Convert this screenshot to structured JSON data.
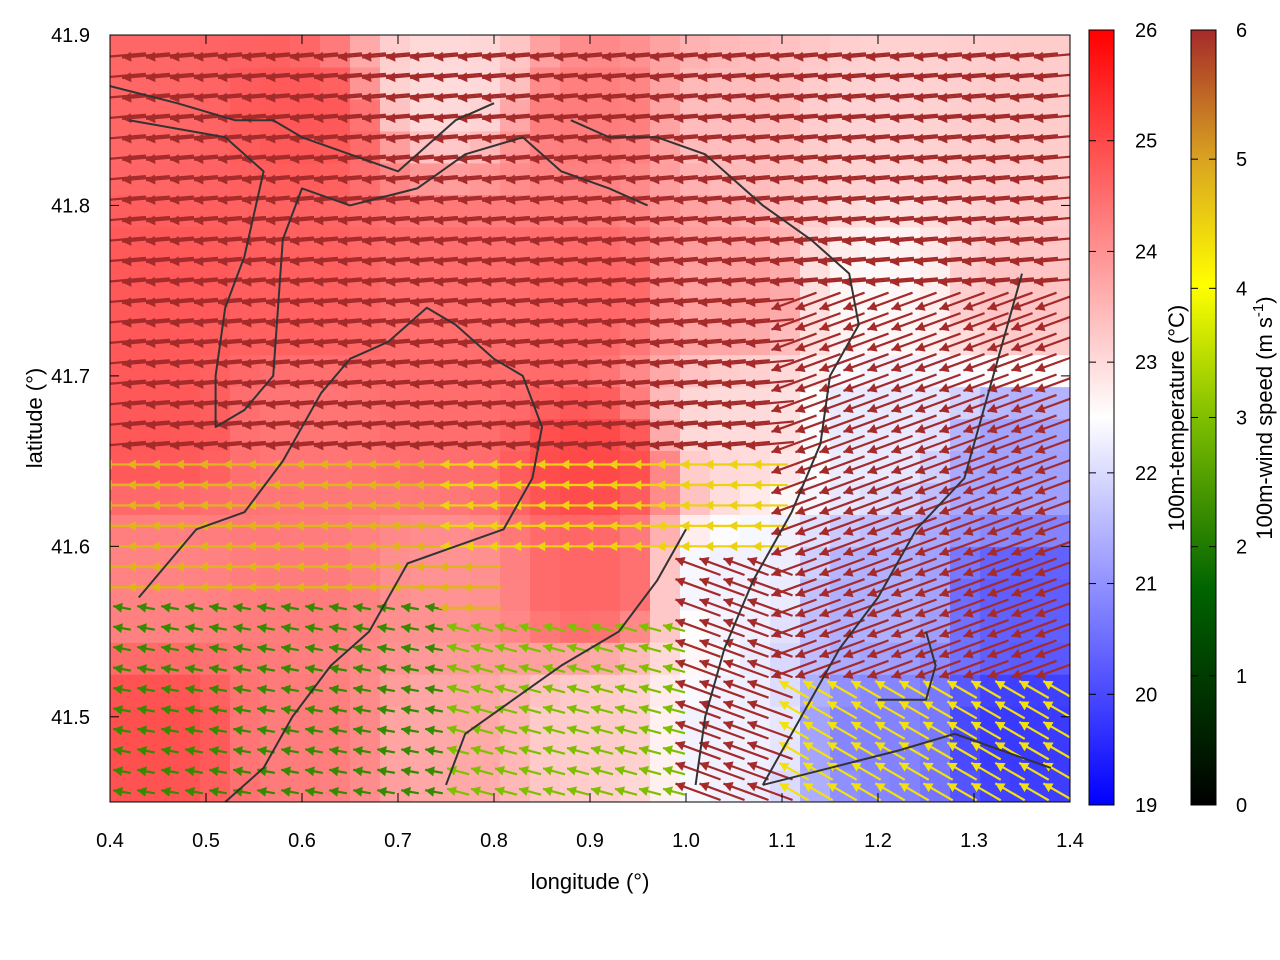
{
  "chart_data": {
    "type": "heatmap",
    "overlay": "wind-vector-field-with-contours",
    "xlabel": "longitude (°)",
    "ylabel": "latitude (°)",
    "xlim": [
      0.4,
      1.4
    ],
    "ylim": [
      41.45,
      41.9
    ],
    "xticks": [
      "0.4",
      "0.5",
      "0.6",
      "0.7",
      "0.8",
      "0.9",
      "1.0",
      "1.1",
      "1.2",
      "1.3",
      "1.4"
    ],
    "yticks": [
      "41.5",
      "41.6",
      "41.7",
      "41.8",
      "41.9"
    ],
    "grid": false,
    "temperature_colorbar": {
      "label": "100m-temperature (°C)",
      "range": [
        19,
        26
      ],
      "ticks": [
        "19",
        "20",
        "21",
        "22",
        "23",
        "24",
        "25",
        "26"
      ],
      "colors": [
        "#0000ff",
        "#ffffff",
        "#ff0000"
      ]
    },
    "wind_colorbar": {
      "label_prefix": "100m-wind speed (m s",
      "label_exp": "-1",
      "label_suffix": ")",
      "range": [
        0,
        6
      ],
      "ticks": [
        "0",
        "1",
        "2",
        "3",
        "4",
        "5",
        "6"
      ],
      "colors": [
        "#000000",
        "#006400",
        "#7fbf00",
        "#ffff00",
        "#daa520",
        "#a52a2a"
      ]
    },
    "temperature_field": [
      {
        "lon": 0.45,
        "lat": 41.85,
        "t": 24.6
      },
      {
        "lon": 0.6,
        "lat": 41.85,
        "t": 24.8
      },
      {
        "lon": 0.75,
        "lat": 41.87,
        "t": 23.0
      },
      {
        "lon": 0.9,
        "lat": 41.85,
        "t": 24.3
      },
      {
        "lon": 1.05,
        "lat": 41.85,
        "t": 23.4
      },
      {
        "lon": 1.2,
        "lat": 41.85,
        "t": 23.1
      },
      {
        "lon": 1.35,
        "lat": 41.85,
        "t": 23.2
      },
      {
        "lon": 0.45,
        "lat": 41.75,
        "t": 24.8
      },
      {
        "lon": 0.6,
        "lat": 41.75,
        "t": 24.7
      },
      {
        "lon": 0.75,
        "lat": 41.75,
        "t": 24.5
      },
      {
        "lon": 0.9,
        "lat": 41.75,
        "t": 24.6
      },
      {
        "lon": 1.05,
        "lat": 41.75,
        "t": 23.8
      },
      {
        "lon": 1.2,
        "lat": 41.75,
        "t": 22.6
      },
      {
        "lon": 1.35,
        "lat": 41.75,
        "t": 23.3
      },
      {
        "lon": 0.45,
        "lat": 41.67,
        "t": 24.8
      },
      {
        "lon": 0.6,
        "lat": 41.67,
        "t": 24.4
      },
      {
        "lon": 0.75,
        "lat": 41.67,
        "t": 24.5
      },
      {
        "lon": 0.9,
        "lat": 41.65,
        "t": 25.0
      },
      {
        "lon": 1.05,
        "lat": 41.67,
        "t": 23.0
      },
      {
        "lon": 1.2,
        "lat": 41.67,
        "t": 22.2
      },
      {
        "lon": 1.35,
        "lat": 41.65,
        "t": 21.2
      },
      {
        "lon": 0.45,
        "lat": 41.58,
        "t": 24.2
      },
      {
        "lon": 0.6,
        "lat": 41.58,
        "t": 24.3
      },
      {
        "lon": 0.75,
        "lat": 41.58,
        "t": 24.0
      },
      {
        "lon": 0.9,
        "lat": 41.58,
        "t": 24.6
      },
      {
        "lon": 1.05,
        "lat": 41.58,
        "t": 22.3
      },
      {
        "lon": 1.2,
        "lat": 41.57,
        "t": 21.4
      },
      {
        "lon": 1.35,
        "lat": 41.57,
        "t": 20.3
      },
      {
        "lon": 0.45,
        "lat": 41.49,
        "t": 24.9
      },
      {
        "lon": 0.6,
        "lat": 41.49,
        "t": 24.3
      },
      {
        "lon": 0.75,
        "lat": 41.49,
        "t": 23.7
      },
      {
        "lon": 0.9,
        "lat": 41.49,
        "t": 23.2
      },
      {
        "lon": 1.05,
        "lat": 41.49,
        "t": 22.3
      },
      {
        "lon": 1.2,
        "lat": 41.49,
        "t": 20.8
      },
      {
        "lon": 1.35,
        "lat": 41.49,
        "t": 19.8
      }
    ],
    "wind_regions": [
      {
        "lon": [
          0.4,
          1.4
        ],
        "lat": [
          41.63,
          41.9
        ],
        "speed": 6.0,
        "direction_deg": 185
      },
      {
        "lon": [
          1.1,
          1.4
        ],
        "lat": [
          41.5,
          41.75
        ],
        "speed": 6.0,
        "direction_deg": 200
      },
      {
        "lon": [
          0.4,
          0.8
        ],
        "lat": [
          41.56,
          41.65
        ],
        "speed": 4.6,
        "direction_deg": 180
      },
      {
        "lon": [
          0.75,
          1.1
        ],
        "lat": [
          41.6,
          41.66
        ],
        "speed": 4.2,
        "direction_deg": 180
      },
      {
        "lon": [
          0.4,
          0.75
        ],
        "lat": [
          41.45,
          41.57
        ],
        "speed": 1.7,
        "direction_deg": 170
      },
      {
        "lon": [
          0.75,
          1.0
        ],
        "lat": [
          41.45,
          41.56
        ],
        "speed": 2.4,
        "direction_deg": 165
      },
      {
        "lon": [
          1.1,
          1.4
        ],
        "lat": [
          41.45,
          41.52
        ],
        "speed": 4.0,
        "direction_deg": 150
      },
      {
        "lon": [
          1.0,
          1.1
        ],
        "lat": [
          41.45,
          41.6
        ],
        "speed": 6.0,
        "direction_deg": 160
      }
    ],
    "contours": [
      [
        [
          0.42,
          41.85
        ],
        [
          0.52,
          41.84
        ],
        [
          0.56,
          41.82
        ],
        [
          0.54,
          41.77
        ],
        [
          0.52,
          41.74
        ],
        [
          0.51,
          41.7
        ],
        [
          0.51,
          41.67
        ],
        [
          0.54,
          41.68
        ],
        [
          0.57,
          41.7
        ],
        [
          0.58,
          41.78
        ],
        [
          0.6,
          41.81
        ],
        [
          0.65,
          41.8
        ],
        [
          0.72,
          41.81
        ],
        [
          0.77,
          41.83
        ],
        [
          0.83,
          41.84
        ],
        [
          0.87,
          41.82
        ],
        [
          0.92,
          41.81
        ],
        [
          0.96,
          41.8
        ]
      ],
      [
        [
          0.4,
          41.87
        ],
        [
          0.47,
          41.86
        ],
        [
          0.53,
          41.85
        ],
        [
          0.57,
          41.85
        ],
        [
          0.6,
          41.84
        ],
        [
          0.65,
          41.83
        ],
        [
          0.7,
          41.82
        ],
        [
          0.76,
          41.85
        ],
        [
          0.8,
          41.86
        ]
      ],
      [
        [
          0.43,
          41.57
        ],
        [
          0.49,
          41.61
        ],
        [
          0.54,
          41.62
        ],
        [
          0.58,
          41.65
        ],
        [
          0.62,
          41.69
        ],
        [
          0.65,
          41.71
        ],
        [
          0.69,
          41.72
        ],
        [
          0.73,
          41.74
        ],
        [
          0.76,
          41.73
        ],
        [
          0.8,
          41.71
        ],
        [
          0.83,
          41.7
        ],
        [
          0.85,
          41.67
        ],
        [
          0.84,
          41.64
        ],
        [
          0.81,
          41.61
        ],
        [
          0.76,
          41.6
        ],
        [
          0.71,
          41.59
        ],
        [
          0.67,
          41.55
        ],
        [
          0.63,
          41.53
        ],
        [
          0.59,
          41.5
        ],
        [
          0.56,
          41.47
        ],
        [
          0.52,
          41.45
        ]
      ],
      [
        [
          0.88,
          41.85
        ],
        [
          0.92,
          41.84
        ],
        [
          0.97,
          41.84
        ],
        [
          1.02,
          41.83
        ],
        [
          1.08,
          41.8
        ],
        [
          1.13,
          41.78
        ],
        [
          1.17,
          41.76
        ],
        [
          1.18,
          41.73
        ],
        [
          1.15,
          41.7
        ],
        [
          1.14,
          41.66
        ],
        [
          1.11,
          41.62
        ],
        [
          1.07,
          41.58
        ],
        [
          1.04,
          41.54
        ],
        [
          1.02,
          41.5
        ],
        [
          1.01,
          41.46
        ]
      ],
      [
        [
          1.35,
          41.76
        ],
        [
          1.33,
          41.72
        ],
        [
          1.31,
          41.68
        ],
        [
          1.29,
          41.64
        ],
        [
          1.24,
          41.61
        ],
        [
          1.2,
          41.57
        ],
        [
          1.16,
          41.54
        ],
        [
          1.12,
          41.5
        ],
        [
          1.08,
          41.46
        ]
      ],
      [
        [
          0.75,
          41.46
        ],
        [
          0.77,
          41.49
        ],
        [
          0.82,
          41.51
        ],
        [
          0.87,
          41.53
        ],
        [
          0.93,
          41.55
        ],
        [
          0.97,
          41.58
        ],
        [
          1.0,
          41.61
        ]
      ],
      [
        [
          1.2,
          41.51
        ],
        [
          1.25,
          41.51
        ],
        [
          1.26,
          41.53
        ],
        [
          1.25,
          41.55
        ]
      ],
      [
        [
          1.08,
          41.46
        ],
        [
          1.15,
          41.47
        ],
        [
          1.22,
          41.48
        ],
        [
          1.28,
          41.49
        ],
        [
          1.33,
          41.48
        ],
        [
          1.38,
          41.47
        ]
      ]
    ]
  }
}
